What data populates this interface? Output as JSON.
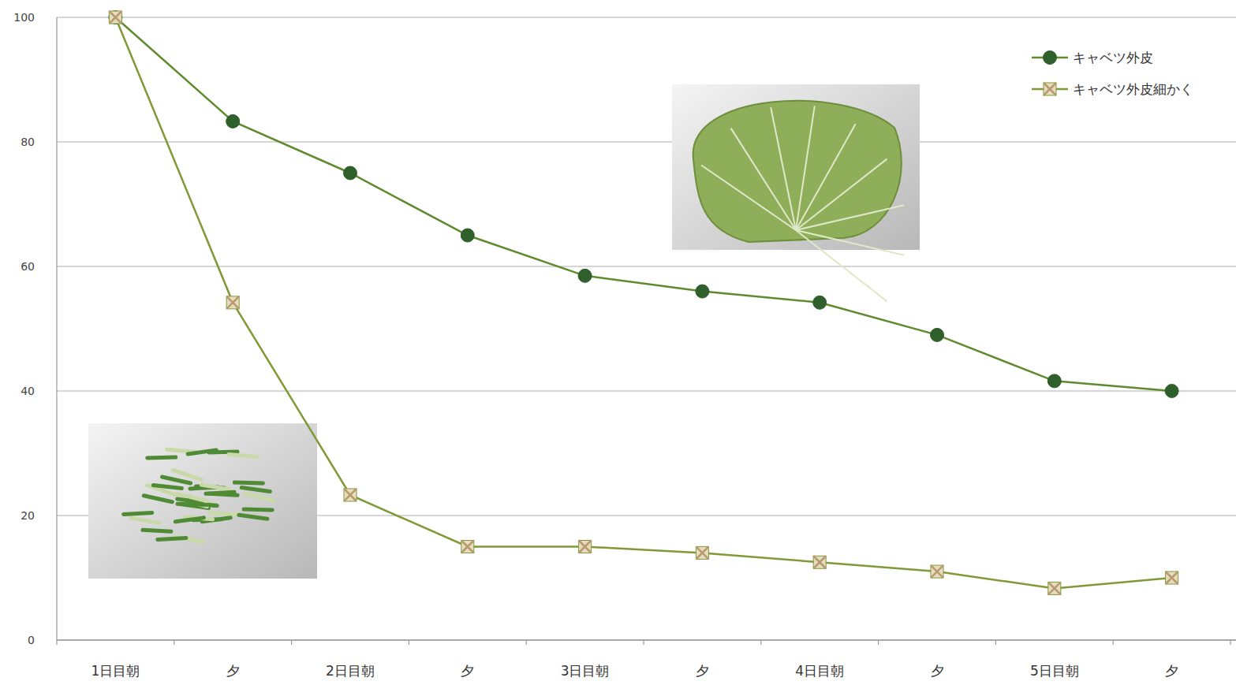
{
  "chart_data": {
    "type": "line",
    "categories": [
      "1日目朝",
      "夕",
      "2日目朝",
      "夕",
      "3日目朝",
      "夕",
      "4日目朝",
      "夕",
      "5日目朝",
      "夕"
    ],
    "series": [
      {
        "name": "キャベツ外皮",
        "color": "#5f8a2e",
        "marker": "circle",
        "values": [
          100,
          83.3,
          75,
          65,
          58.5,
          56,
          54.2,
          49,
          41.6,
          40
        ]
      },
      {
        "name": "キャベツ外皮細かく",
        "color": "#7f9a36",
        "marker": "x",
        "values": [
          100,
          54.2,
          23.3,
          15,
          15,
          14,
          12.5,
          11,
          8.3,
          10
        ]
      }
    ],
    "ylim": [
      0,
      100
    ],
    "yticks": [
      0,
      20,
      40,
      60,
      80,
      100
    ],
    "grid": true,
    "legend": "top-right"
  }
}
